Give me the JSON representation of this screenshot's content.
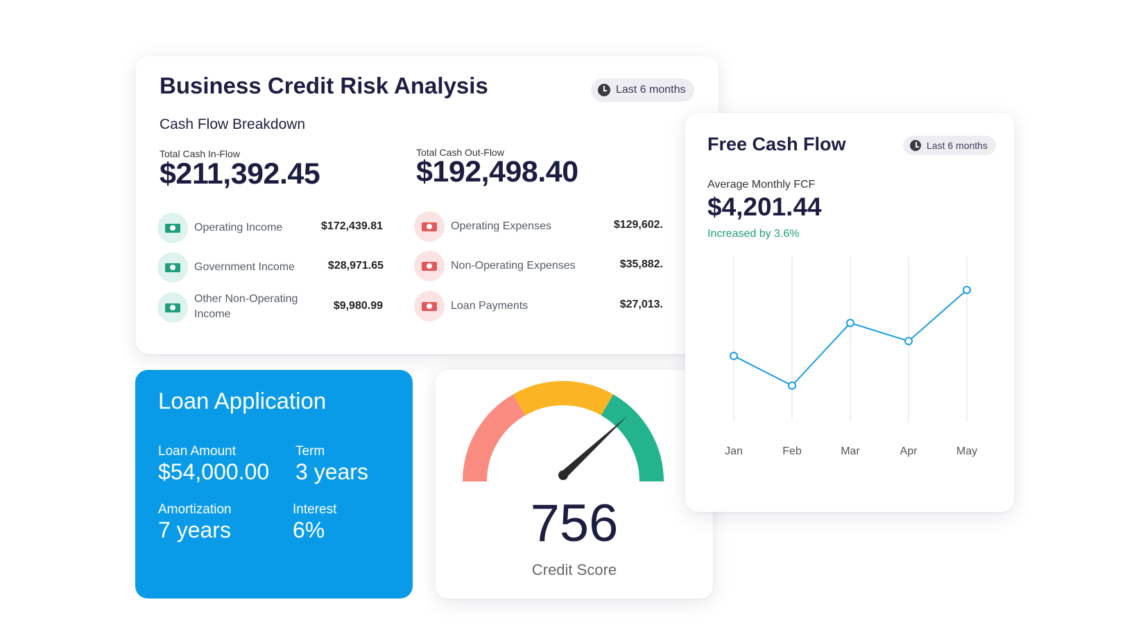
{
  "risk": {
    "title": "Business Credit Risk Analysis",
    "period": "Last 6 months",
    "subtitle": "Cash Flow Breakdown",
    "inflow": {
      "label": "Total Cash In-Flow",
      "total": "$211,392.45",
      "items": [
        {
          "label": "Operating Income",
          "value": "$172,439.81"
        },
        {
          "label": "Government Income",
          "value": "$28,971.65"
        },
        {
          "label": "Other Non-Operating Income",
          "value": "$9,980.99"
        }
      ]
    },
    "outflow": {
      "label": "Total Cash Out-Flow",
      "total": "$192,498.40",
      "items": [
        {
          "label": "Operating Expenses",
          "value": "$129,602."
        },
        {
          "label": "Non-Operating Expenses",
          "value": "$35,882."
        },
        {
          "label": "Loan Payments",
          "value": "$27,013."
        }
      ]
    }
  },
  "loan": {
    "title": "Loan Application",
    "amount_label": "Loan Amount",
    "amount": "$54,000.00",
    "term_label": "Term",
    "term": "3 years",
    "amort_label": "Amortization",
    "amort": "7 years",
    "interest_label": "Interest",
    "interest": "6%"
  },
  "score": {
    "value": "756",
    "label": "Credit Score"
  },
  "fcf": {
    "title": "Free Cash Flow",
    "period": "Last 6 months",
    "avg_label": "Average Monthly FCF",
    "avg_value": "$4,201.44",
    "change": "Increased by 3.6%"
  },
  "colors": {
    "accent_blue": "#0a9be8",
    "line_blue": "#1a9ce6",
    "positive_green": "#1f9f7a",
    "negative_red": "#e2595b",
    "gauge_red": "#f98b80",
    "gauge_yellow": "#fbb424",
    "gauge_green": "#23b38d"
  },
  "chart_data": {
    "type": "line",
    "categories": [
      "Jan",
      "Feb",
      "Mar",
      "Apr",
      "May"
    ],
    "series": [
      {
        "values": [
          4000,
          3100,
          5000,
          4450,
          6000
        ]
      }
    ],
    "ylim": [
      2000,
      7000
    ],
    "grid": "vertical"
  }
}
